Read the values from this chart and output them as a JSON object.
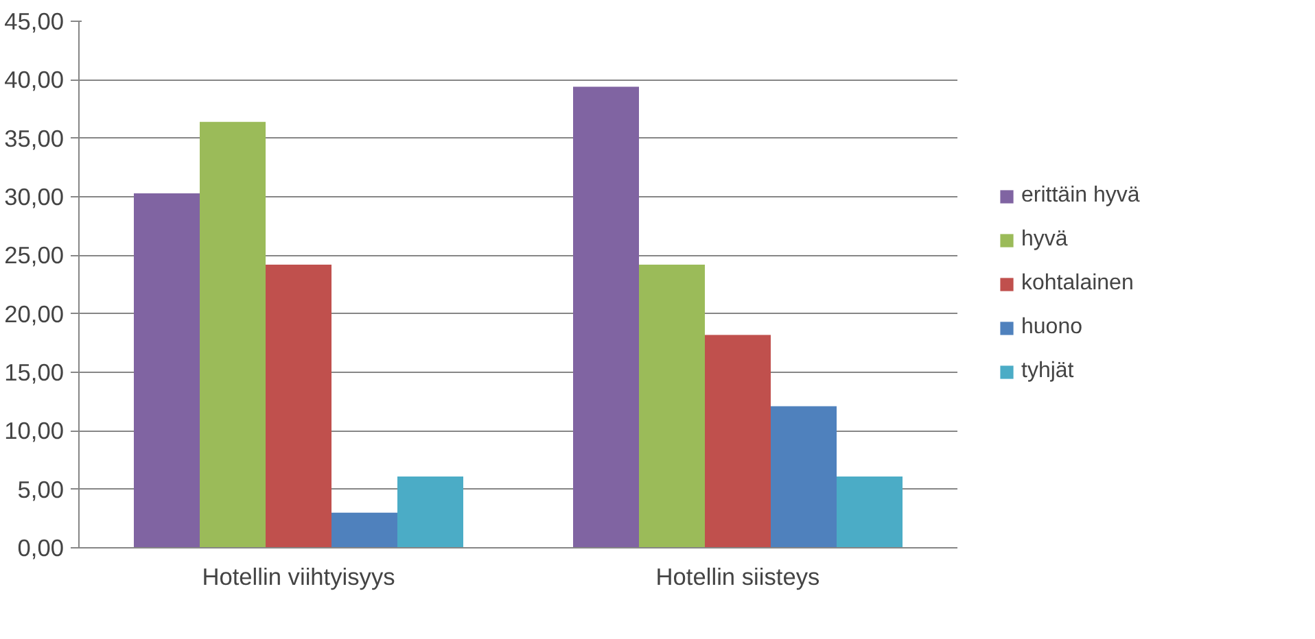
{
  "chart_data": {
    "type": "bar",
    "categories": [
      "Hotellin viihtyisyys",
      "Hotellin siisteys"
    ],
    "series": [
      {
        "name": "erittäin hyvä",
        "color": "#8064a2",
        "values": [
          30.3,
          39.4
        ]
      },
      {
        "name": "hyvä",
        "color": "#9bbb59",
        "values": [
          36.4,
          24.2
        ]
      },
      {
        "name": "kohtalainen",
        "color": "#c0504d",
        "values": [
          24.2,
          18.2
        ]
      },
      {
        "name": "huono",
        "color": "#4f81bd",
        "values": [
          3.0,
          12.1
        ]
      },
      {
        "name": "tyhjät",
        "color": "#4bacc6",
        "values": [
          6.1,
          6.1
        ]
      }
    ],
    "ylim": [
      0,
      45
    ],
    "yticks": [
      {
        "value": 0,
        "label": "0,00"
      },
      {
        "value": 5,
        "label": "5,00"
      },
      {
        "value": 10,
        "label": "10,00"
      },
      {
        "value": 15,
        "label": "15,00"
      },
      {
        "value": 20,
        "label": "20,00"
      },
      {
        "value": 25,
        "label": "25,00"
      },
      {
        "value": 30,
        "label": "30,00"
      },
      {
        "value": 35,
        "label": "35,00"
      },
      {
        "value": 40,
        "label": "40,00"
      },
      {
        "value": 45,
        "label": "45,00"
      }
    ],
    "grid": "y",
    "legend": "right"
  }
}
